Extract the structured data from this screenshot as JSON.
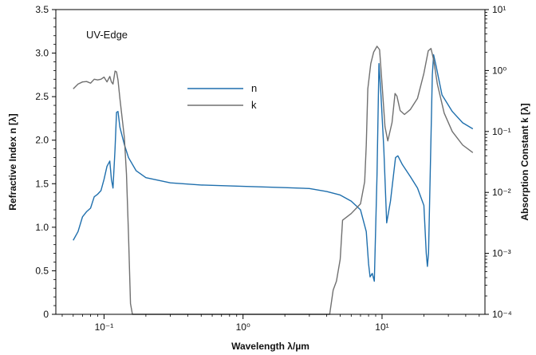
{
  "chart_data": {
    "type": "line",
    "annotation": "UV-Edge",
    "xlabel": "Wavelength λ/µm",
    "ylabel_left": "Refractive Index n [λ]",
    "ylabel_right": "Absorption Constant k [λ]",
    "x_scale": "log",
    "xlim": [
      0.045,
      55
    ],
    "ylim_left": [
      0,
      3.5
    ],
    "ylim_right": [
      0.0001,
      10
    ],
    "y_right_scale": "log",
    "grid": false,
    "legend_position": "upper-center",
    "x_ticks": [
      {
        "value": 0.1,
        "label": "10⁻¹"
      },
      {
        "value": 1,
        "label": "10⁰"
      },
      {
        "value": 10,
        "label": "10¹"
      }
    ],
    "y_left_ticks": [
      "0",
      "0.5",
      "1.0",
      "1.5",
      "2.0",
      "2.5",
      "3.0",
      "3.5"
    ],
    "y_right_ticks": [
      {
        "value": 0.0001,
        "label": "10⁻⁴"
      },
      {
        "value": 0.001,
        "label": "10⁻³"
      },
      {
        "value": 0.01,
        "label": "10⁻²"
      },
      {
        "value": 0.1,
        "label": "10⁻¹"
      },
      {
        "value": 1,
        "label": "10⁰"
      },
      {
        "value": 10,
        "label": "10¹"
      }
    ],
    "series": [
      {
        "name": "n",
        "axis": "left",
        "color": "#1f6fad",
        "points": [
          [
            0.06,
            0.85
          ],
          [
            0.065,
            0.95
          ],
          [
            0.07,
            1.12
          ],
          [
            0.075,
            1.18
          ],
          [
            0.08,
            1.22
          ],
          [
            0.085,
            1.35
          ],
          [
            0.09,
            1.38
          ],
          [
            0.095,
            1.42
          ],
          [
            0.1,
            1.55
          ],
          [
            0.105,
            1.7
          ],
          [
            0.11,
            1.76
          ],
          [
            0.113,
            1.55
          ],
          [
            0.116,
            1.45
          ],
          [
            0.12,
            1.9
          ],
          [
            0.123,
            2.32
          ],
          [
            0.126,
            2.33
          ],
          [
            0.13,
            2.15
          ],
          [
            0.14,
            1.95
          ],
          [
            0.15,
            1.8
          ],
          [
            0.17,
            1.65
          ],
          [
            0.2,
            1.57
          ],
          [
            0.3,
            1.51
          ],
          [
            0.5,
            1.485
          ],
          [
            1,
            1.47
          ],
          [
            2,
            1.455
          ],
          [
            3,
            1.445
          ],
          [
            4,
            1.41
          ],
          [
            5,
            1.37
          ],
          [
            6,
            1.3
          ],
          [
            7,
            1.2
          ],
          [
            7.7,
            0.95
          ],
          [
            8,
            0.58
          ],
          [
            8.2,
            0.43
          ],
          [
            8.5,
            0.47
          ],
          [
            8.8,
            0.38
          ],
          [
            9.2,
            1.6
          ],
          [
            9.5,
            2.88
          ],
          [
            9.8,
            2.55
          ],
          [
            10.3,
            1.9
          ],
          [
            10.8,
            1.05
          ],
          [
            11.5,
            1.3
          ],
          [
            12.5,
            1.8
          ],
          [
            13,
            1.82
          ],
          [
            14,
            1.72
          ],
          [
            16,
            1.58
          ],
          [
            18,
            1.45
          ],
          [
            20,
            1.25
          ],
          [
            20.8,
            0.7
          ],
          [
            21.2,
            0.55
          ],
          [
            21.6,
            0.7
          ],
          [
            22.2,
            1.6
          ],
          [
            23,
            2.75
          ],
          [
            23.5,
            2.98
          ],
          [
            24.5,
            2.85
          ],
          [
            27,
            2.52
          ],
          [
            32,
            2.33
          ],
          [
            38,
            2.2
          ],
          [
            45,
            2.13
          ]
        ]
      },
      {
        "name": "k",
        "axis": "right",
        "color": "#707070",
        "points": [
          [
            0.06,
            0.5
          ],
          [
            0.065,
            0.6
          ],
          [
            0.07,
            0.65
          ],
          [
            0.075,
            0.66
          ],
          [
            0.08,
            0.62
          ],
          [
            0.085,
            0.72
          ],
          [
            0.09,
            0.7
          ],
          [
            0.095,
            0.72
          ],
          [
            0.1,
            0.78
          ],
          [
            0.105,
            0.65
          ],
          [
            0.11,
            0.8
          ],
          [
            0.113,
            0.65
          ],
          [
            0.116,
            0.6
          ],
          [
            0.12,
            0.98
          ],
          [
            0.123,
            0.95
          ],
          [
            0.126,
            0.7
          ],
          [
            0.13,
            0.35
          ],
          [
            0.14,
            0.08
          ],
          [
            0.145,
            0.02
          ],
          [
            0.15,
            0.002
          ],
          [
            0.155,
            0.00015
          ],
          [
            0.16,
            0.0001
          ],
          [
            1,
            0.0001
          ],
          [
            4.2,
            0.0001
          ],
          [
            4.45,
            0.00025
          ],
          [
            4.7,
            0.00035
          ],
          [
            5.0,
            0.0008
          ],
          [
            5.2,
            0.0035
          ],
          [
            6,
            0.0045
          ],
          [
            7,
            0.0065
          ],
          [
            7.5,
            0.015
          ],
          [
            7.7,
            0.06
          ],
          [
            7.9,
            0.5
          ],
          [
            8.3,
            1.3
          ],
          [
            8.7,
            2.0
          ],
          [
            9.2,
            2.5
          ],
          [
            9.6,
            2.2
          ],
          [
            10,
            0.6
          ],
          [
            10.5,
            0.12
          ],
          [
            11,
            0.07
          ],
          [
            11.8,
            0.14
          ],
          [
            12.4,
            0.42
          ],
          [
            12.8,
            0.38
          ],
          [
            13.5,
            0.22
          ],
          [
            14.5,
            0.19
          ],
          [
            16,
            0.23
          ],
          [
            18,
            0.35
          ],
          [
            20,
            0.9
          ],
          [
            21.5,
            2.1
          ],
          [
            22.5,
            2.3
          ],
          [
            23.5,
            1.5
          ],
          [
            25,
            0.6
          ],
          [
            28,
            0.2
          ],
          [
            32,
            0.1
          ],
          [
            38,
            0.06
          ],
          [
            45,
            0.045
          ]
        ]
      }
    ]
  }
}
